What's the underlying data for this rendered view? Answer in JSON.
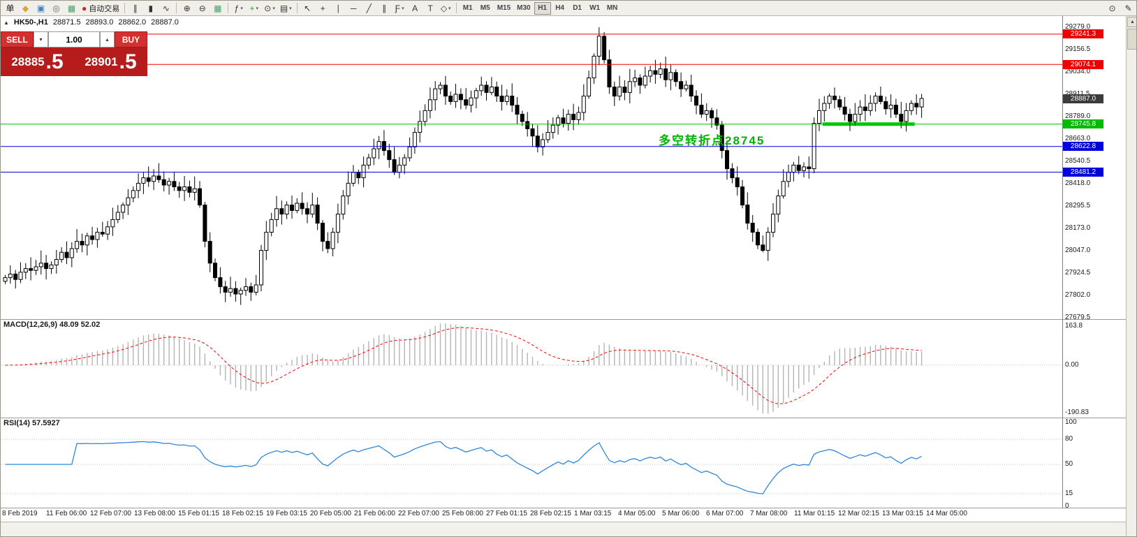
{
  "toolbar": {
    "caret_glyph": "▾",
    "items": [
      {
        "name": "new-order-button",
        "glyph": "单",
        "color": "#222222"
      },
      {
        "name": "market-watch-button",
        "glyph": "◆",
        "color": "#d9a43c"
      },
      {
        "name": "navigator-button",
        "glyph": "▣",
        "color": "#4a7ebb"
      },
      {
        "name": "terminal-button",
        "glyph": "◎",
        "color": "#666666"
      },
      {
        "name": "strategy-tester-button",
        "glyph": "▦",
        "color": "#3aa66e"
      },
      {
        "name": "autotrading-button",
        "glyph": "●",
        "color": "#cc2222",
        "label": "自动交易"
      },
      {
        "type": "sep"
      },
      {
        "name": "bar-chart-button",
        "glyph": "∥"
      },
      {
        "name": "candlestick-chart-button",
        "glyph": "▮"
      },
      {
        "name": "line-chart-button",
        "glyph": "∿"
      },
      {
        "type": "sep"
      },
      {
        "name": "zoom-in-button",
        "glyph": "⊕"
      },
      {
        "name": "zoom-out-button",
        "glyph": "⊖"
      },
      {
        "name": "tile-windows-button",
        "glyph": "▦",
        "color": "#3aa66e"
      },
      {
        "type": "sep"
      },
      {
        "name": "indicators-button",
        "glyph": "ƒ",
        "caret": true
      },
      {
        "name": "add-indicator-button",
        "glyph": "+",
        "color": "#2e9e3a",
        "caret": true
      },
      {
        "name": "periods-button",
        "glyph": "⊙",
        "caret": true
      },
      {
        "name": "templates-button",
        "glyph": "▤",
        "caret": true
      },
      {
        "type": "sep"
      },
      {
        "name": "cursor-button",
        "glyph": "↖"
      },
      {
        "name": "crosshair-button",
        "glyph": "+"
      },
      {
        "name": "vertical-line-button",
        "glyph": "∣"
      },
      {
        "name": "horizontal-line-button",
        "glyph": "─"
      },
      {
        "name": "trendline-button",
        "glyph": "╱"
      },
      {
        "name": "channel-button",
        "glyph": "∥"
      },
      {
        "name": "fibonacci-button",
        "glyph": "Ƒ",
        "caret": true
      },
      {
        "name": "text-button",
        "glyph": "A"
      },
      {
        "name": "text-label-button",
        "glyph": "T"
      },
      {
        "name": "shapes-button",
        "glyph": "◇",
        "caret": true
      },
      {
        "type": "sep"
      }
    ],
    "timeframes": [
      "M1",
      "M5",
      "M15",
      "M30",
      "H1",
      "H4",
      "D1",
      "W1",
      "MN"
    ],
    "active_timeframe": "H1",
    "right_items": [
      {
        "name": "search-button",
        "glyph": "⊙"
      },
      {
        "name": "pin-button",
        "glyph": "✎"
      }
    ]
  },
  "symbol_bar": {
    "collapse_glyph": "▲",
    "symbol": "HK50-,H1",
    "open": "28871.5",
    "high": "28893.0",
    "low": "28862.0",
    "close": "28887.0"
  },
  "trade_panel": {
    "sell_label": "SELL",
    "buy_label": "BUY",
    "volume": "1.00",
    "spin_down_glyph": "▾",
    "spin_up_glyph": "▴",
    "sell_price_base": "28885",
    "sell_price_big": ".5",
    "buy_price_base": "28901",
    "buy_price_big": ".5"
  },
  "scrollbar": {
    "up_glyph": "▲"
  },
  "chart_data": {
    "type": "candlestick",
    "symbol": "HK50-",
    "timeframe": "H1",
    "ohlc_display": {
      "open": "28871.5",
      "high": "28893.0",
      "low": "28862.0",
      "close": "28887.0"
    },
    "closes": [
      27900,
      27920,
      27890,
      27930,
      27950,
      27940,
      27960,
      27980,
      27950,
      27970,
      28000,
      28040,
      28010,
      28060,
      28100,
      28080,
      28130,
      28110,
      28150,
      28140,
      28180,
      28220,
      28260,
      28300,
      28340,
      28380,
      28420,
      28450,
      28430,
      28460,
      28440,
      28410,
      28430,
      28400,
      28380,
      28400,
      28370,
      28390,
      28300,
      28100,
      27980,
      27900,
      27850,
      27820,
      27840,
      27810,
      27830,
      27850,
      27820,
      27860,
      28050,
      28150,
      28220,
      28280,
      28250,
      28300,
      28270,
      28310,
      28280,
      28250,
      28300,
      28200,
      28100,
      28060,
      28150,
      28250,
      28350,
      28420,
      28480,
      28450,
      28520,
      28560,
      28610,
      28650,
      28600,
      28550,
      28480,
      28520,
      28560,
      28620,
      28700,
      28760,
      28820,
      28880,
      28940,
      28960,
      28900,
      28870,
      28910,
      28880,
      28850,
      28890,
      28930,
      28960,
      28920,
      28950,
      28900,
      28870,
      28900,
      28850,
      28800,
      28760,
      28720,
      28680,
      28620,
      28660,
      28700,
      28740,
      28780,
      28750,
      28800,
      28770,
      28810,
      28900,
      29000,
      29120,
      29230,
      29100,
      28950,
      28900,
      28950,
      28920,
      28980,
      29000,
      28960,
      29010,
      29040,
      29020,
      29050,
      28990,
      29030,
      28980,
      28940,
      28960,
      28900,
      28850,
      28800,
      28820,
      28780,
      28740,
      28600,
      28500,
      28450,
      28400,
      28300,
      28200,
      28150,
      28080,
      28050,
      28150,
      28250,
      28350,
      28430,
      28480,
      28520,
      28490,
      28510,
      28500,
      28750,
      28820,
      28860,
      28900,
      28880,
      28840,
      28800,
      28760,
      28800,
      28840,
      28820,
      28860,
      28900,
      28870,
      28830,
      28850,
      28800,
      28760,
      28820,
      28860,
      28840,
      28887
    ],
    "y_axis_labels": [
      "29279.0",
      "29156.5",
      "29034.0",
      "28911.5",
      "28789.0",
      "28663.0",
      "28540.5",
      "28418.0",
      "28295.5",
      "28173.0",
      "28047.0",
      "27924.5",
      "27802.0",
      "27679.5"
    ],
    "x_axis_labels": [
      "8 Feb 2019",
      "11 Feb 06:00",
      "12 Feb 07:00",
      "13 Feb 08:00",
      "15 Feb 01:15",
      "18 Feb 02:15",
      "19 Feb 03:15",
      "20 Feb 05:00",
      "21 Feb 06:00",
      "22 Feb 07:00",
      "25 Feb 08:00",
      "27 Feb 01:15",
      "28 Feb 02:15",
      "1 Mar 03:15",
      "4 Mar 05:00",
      "5 Mar 06:00",
      "6 Mar 07:00",
      "7 Mar 08:00",
      "11 Mar 01:15",
      "12 Mar 02:15",
      "13 Mar 03:15",
      "14 Mar 05:00"
    ],
    "horizontal_lines": [
      {
        "price": 29241.3,
        "label": "29241.3",
        "color": "#ee0000"
      },
      {
        "price": 29074.1,
        "label": "29074.1",
        "color": "#ee0000"
      },
      {
        "price": 28745.8,
        "label": "28745.8",
        "color": "#00bb00"
      },
      {
        "price": 28622.8,
        "label": "28622.8",
        "color": "#0000dd"
      },
      {
        "price": 28481.2,
        "label": "28481.2",
        "color": "#0000dd"
      }
    ],
    "current_price": {
      "price": 28887.0,
      "label": "28887.0",
      "color": "#3c3c3c"
    },
    "support_highlight": {
      "price": 28745.8,
      "from_bar": 160,
      "to_bar": 178,
      "color": "#00cc00"
    },
    "annotation": {
      "text": "多空转折点28745",
      "bar": 128,
      "price": 28710,
      "color": "#00b400"
    },
    "indicators": {
      "macd": {
        "display": "MACD(12,26,9) 48.09 52.02",
        "params": [
          12,
          26,
          9
        ],
        "axis_labels": [
          "163.8",
          "0.00",
          "-190.83"
        ]
      },
      "rsi": {
        "display": "RSI(14) 57.5927",
        "params": [
          14
        ],
        "axis_labels": [
          "100",
          "80",
          "50",
          "15",
          "0"
        ],
        "line_color": "#2e86de",
        "levels": [
          80,
          50,
          15
        ]
      }
    },
    "candle_up_color": "#ffffff",
    "candle_down_color": "#000000",
    "macd_histogram_color": "#b4b4b4",
    "macd_signal_color": "#ff0000"
  }
}
